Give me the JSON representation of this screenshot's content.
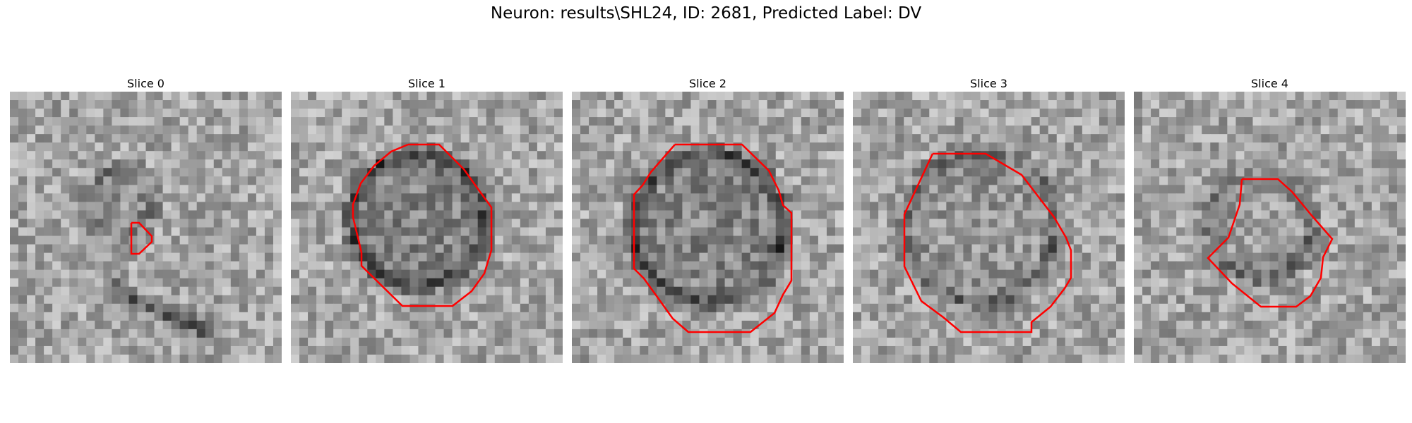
{
  "figure": {
    "title": "Neuron: results\\SHL24, ID: 2681, Predicted Label: DV"
  },
  "slices": [
    {
      "label": "Slice 0",
      "contour_color": "#ff0000"
    },
    {
      "label": "Slice 1",
      "contour_color": "#ff0000"
    },
    {
      "label": "Slice 2",
      "contour_color": "#ff0000"
    },
    {
      "label": "Slice 3",
      "contour_color": "#ff0000"
    },
    {
      "label": "Slice 4",
      "contour_color": "#ff0000"
    }
  ]
}
